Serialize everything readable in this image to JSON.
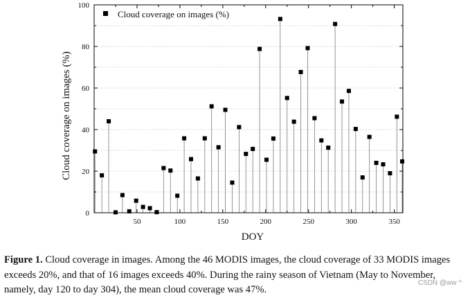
{
  "chart_data": {
    "type": "scatter",
    "style": "stem-with-square-markers",
    "xlabel": "DOY",
    "ylabel": "Cloud coverage on images (%)",
    "xlim": [
      0,
      360
    ],
    "ylim": [
      0,
      100
    ],
    "xticks": [
      50,
      100,
      150,
      200,
      250,
      300,
      350
    ],
    "yticks": [
      0,
      20,
      40,
      60,
      80,
      100
    ],
    "grid": "horizontal-dotted",
    "legend_position": "top-left",
    "marker_color": "#000000",
    "series": [
      {
        "name": "Cloud coverage on images (%)",
        "x": [
          1,
          9,
          17,
          25,
          33,
          41,
          49,
          57,
          65,
          73,
          81,
          89,
          97,
          105,
          113,
          121,
          129,
          137,
          145,
          153,
          161,
          169,
          177,
          185,
          193,
          201,
          209,
          217,
          225,
          233,
          241,
          249,
          257,
          265,
          273,
          281,
          289,
          297,
          305,
          313,
          321,
          329,
          337,
          345,
          353,
          361
        ],
        "values": [
          29.5,
          18,
          44,
          0.2,
          8.5,
          0.7,
          5.8,
          2.8,
          2.2,
          0.3,
          21.5,
          20.3,
          8.2,
          35.8,
          25.8,
          16.5,
          35.8,
          51.2,
          31.5,
          49.5,
          14.5,
          41.2,
          28.3,
          30.7,
          78.8,
          25.5,
          35.7,
          93.2,
          55.2,
          43.8,
          67.7,
          79.2,
          45.5,
          34.8,
          31.3,
          90.8,
          53.5,
          58.6,
          40.3,
          17,
          36.5,
          24,
          23.3,
          19,
          46.2,
          24.7
        ]
      }
    ]
  },
  "caption": {
    "label": "Figure 1.",
    "text": " Cloud coverage in images. Among the 46 MODIS images, the cloud coverage of 33 MODIS images exceeds 20%, and that of 16 images exceeds 40%. During the rainy season of Vietnam (May to November, namely, day 120 to day 304), the mean cloud coverage was 47%."
  },
  "watermark": "CSDN @ww ^"
}
